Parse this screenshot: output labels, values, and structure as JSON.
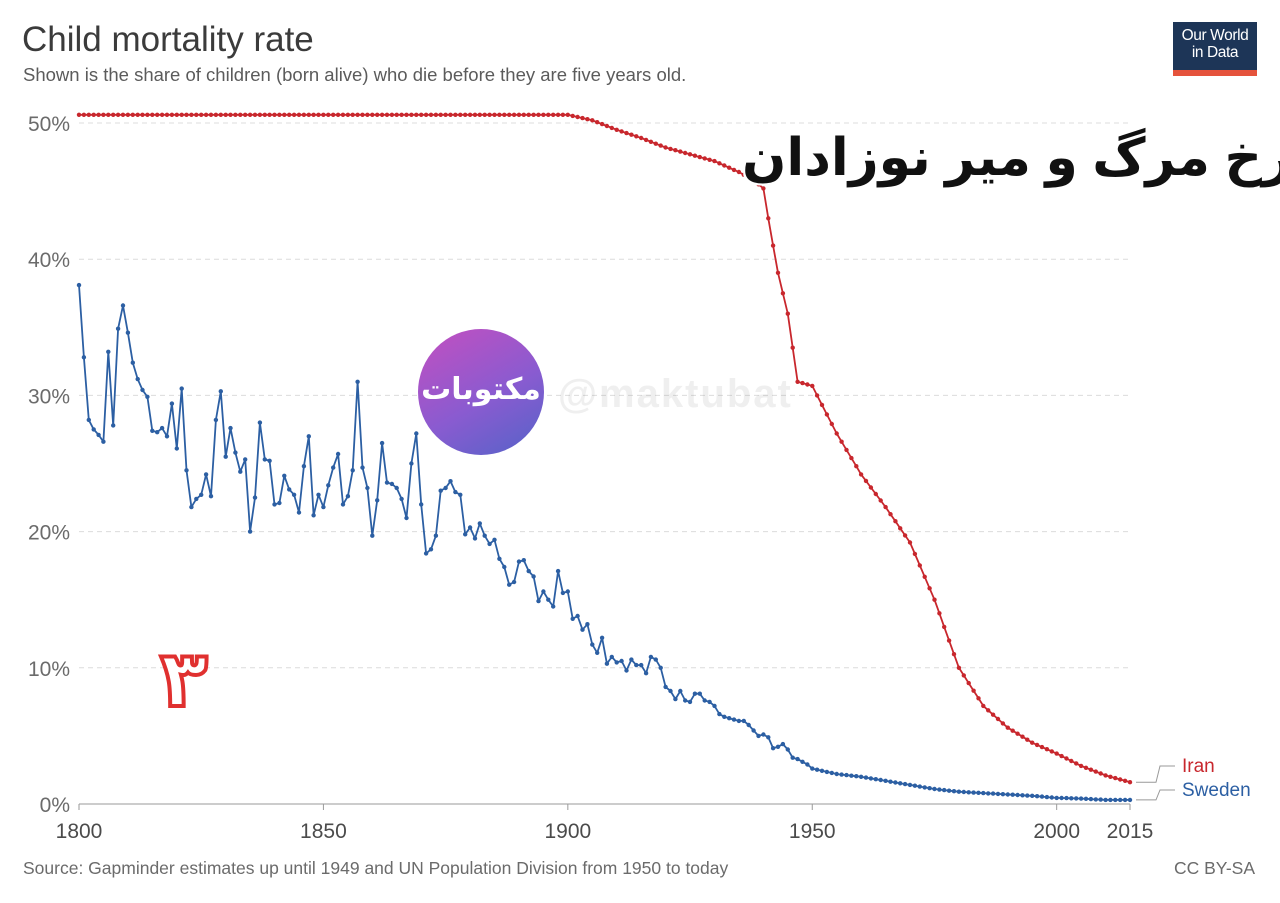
{
  "title": "Child mortality rate",
  "subtitle": "Shown is the share of children (born alive) who die before they are five years old.",
  "source": "Source: Gapminder estimates up until 1949 and UN Population Division from 1950 to today",
  "license": "CC BY-SA",
  "logo": {
    "line1": "Our World",
    "line2": "in Data",
    "bg_color": "#1d3557",
    "bar_color": "#e5533c"
  },
  "overlay": {
    "persian_title": "نرخ مرگ و میر نوزادان",
    "watermark_label": "مکتوبات",
    "watermark_handle": "@maktubat",
    "page_number": "۳"
  },
  "chart_data": {
    "type": "line",
    "title": "Child mortality rate",
    "xlabel": "",
    "ylabel": "",
    "xlim": [
      1800,
      2015
    ],
    "ylim": [
      0,
      50
    ],
    "x_ticks": [
      1800,
      1850,
      1900,
      1950,
      2000,
      2015
    ],
    "y_ticks": [
      0,
      10,
      20,
      30,
      40,
      50
    ],
    "y_tick_labels": [
      "0%",
      "10%",
      "20%",
      "30%",
      "40%",
      "50%"
    ],
    "grid": true,
    "legend": "end-of-line labels, right",
    "series": [
      {
        "name": "Iran",
        "color": "#c8272d",
        "points": [
          [
            1800,
            50.6
          ],
          [
            1900,
            50.6
          ],
          [
            1905,
            50.2
          ],
          [
            1910,
            49.5
          ],
          [
            1915,
            48.9
          ],
          [
            1920,
            48.2
          ],
          [
            1925,
            47.7
          ],
          [
            1930,
            47.2
          ],
          [
            1935,
            46.4
          ],
          [
            1938,
            45.8
          ],
          [
            1940,
            45.2
          ],
          [
            1941,
            43.0
          ],
          [
            1943,
            39.0
          ],
          [
            1945,
            36.0
          ],
          [
            1947,
            31.0
          ],
          [
            1949,
            30.8
          ],
          [
            1950,
            30.7
          ],
          [
            1955,
            27.2
          ],
          [
            1960,
            24.2
          ],
          [
            1965,
            21.8
          ],
          [
            1970,
            19.2
          ],
          [
            1975,
            15.0
          ],
          [
            1980,
            10.0
          ],
          [
            1985,
            7.2
          ],
          [
            1990,
            5.6
          ],
          [
            1995,
            4.5
          ],
          [
            2000,
            3.7
          ],
          [
            2005,
            2.8
          ],
          [
            2010,
            2.1
          ],
          [
            2015,
            1.6
          ]
        ]
      },
      {
        "name": "Sweden",
        "color": "#2c5fa3",
        "points": [
          [
            1800,
            38.1
          ],
          [
            1801,
            32.8
          ],
          [
            1802,
            28.2
          ],
          [
            1803,
            27.5
          ],
          [
            1804,
            27.1
          ],
          [
            1805,
            26.6
          ],
          [
            1806,
            33.2
          ],
          [
            1807,
            27.8
          ],
          [
            1808,
            34.9
          ],
          [
            1809,
            36.6
          ],
          [
            1810,
            34.6
          ],
          [
            1811,
            32.4
          ],
          [
            1812,
            31.2
          ],
          [
            1813,
            30.4
          ],
          [
            1814,
            29.9
          ],
          [
            1815,
            27.4
          ],
          [
            1816,
            27.3
          ],
          [
            1817,
            27.6
          ],
          [
            1818,
            27.0
          ],
          [
            1819,
            29.4
          ],
          [
            1820,
            26.1
          ],
          [
            1821,
            30.5
          ],
          [
            1822,
            24.5
          ],
          [
            1823,
            21.8
          ],
          [
            1824,
            22.4
          ],
          [
            1825,
            22.7
          ],
          [
            1826,
            24.2
          ],
          [
            1827,
            22.6
          ],
          [
            1828,
            28.2
          ],
          [
            1829,
            30.3
          ],
          [
            1830,
            25.5
          ],
          [
            1831,
            27.6
          ],
          [
            1832,
            25.8
          ],
          [
            1833,
            24.4
          ],
          [
            1834,
            25.3
          ],
          [
            1835,
            20.0
          ],
          [
            1836,
            22.5
          ],
          [
            1837,
            28.0
          ],
          [
            1838,
            25.3
          ],
          [
            1839,
            25.2
          ],
          [
            1840,
            22.0
          ],
          [
            1841,
            22.1
          ],
          [
            1842,
            24.1
          ],
          [
            1843,
            23.1
          ],
          [
            1844,
            22.7
          ],
          [
            1845,
            21.4
          ],
          [
            1846,
            24.8
          ],
          [
            1847,
            27.0
          ],
          [
            1848,
            21.2
          ],
          [
            1849,
            22.7
          ],
          [
            1850,
            21.8
          ],
          [
            1851,
            23.4
          ],
          [
            1852,
            24.7
          ],
          [
            1853,
            25.7
          ],
          [
            1854,
            22.0
          ],
          [
            1855,
            22.6
          ],
          [
            1856,
            24.5
          ],
          [
            1857,
            31.0
          ],
          [
            1858,
            24.7
          ],
          [
            1859,
            23.2
          ],
          [
            1860,
            19.7
          ],
          [
            1861,
            22.3
          ],
          [
            1862,
            26.5
          ],
          [
            1863,
            23.6
          ],
          [
            1864,
            23.5
          ],
          [
            1865,
            23.2
          ],
          [
            1866,
            22.4
          ],
          [
            1867,
            21.0
          ],
          [
            1868,
            25.0
          ],
          [
            1869,
            27.2
          ],
          [
            1870,
            22.0
          ],
          [
            1871,
            18.4
          ],
          [
            1872,
            18.7
          ],
          [
            1873,
            19.7
          ],
          [
            1874,
            23.0
          ],
          [
            1875,
            23.2
          ],
          [
            1876,
            23.7
          ],
          [
            1877,
            22.9
          ],
          [
            1878,
            22.7
          ],
          [
            1879,
            19.8
          ],
          [
            1880,
            20.3
          ],
          [
            1881,
            19.5
          ],
          [
            1882,
            20.6
          ],
          [
            1883,
            19.7
          ],
          [
            1884,
            19.1
          ],
          [
            1885,
            19.4
          ],
          [
            1886,
            18.0
          ],
          [
            1887,
            17.4
          ],
          [
            1888,
            16.1
          ],
          [
            1889,
            16.3
          ],
          [
            1890,
            17.8
          ],
          [
            1891,
            17.9
          ],
          [
            1892,
            17.1
          ],
          [
            1893,
            16.7
          ],
          [
            1894,
            14.9
          ],
          [
            1895,
            15.6
          ],
          [
            1896,
            15.0
          ],
          [
            1897,
            14.5
          ],
          [
            1898,
            17.1
          ],
          [
            1899,
            15.5
          ],
          [
            1900,
            15.6
          ],
          [
            1901,
            13.6
          ],
          [
            1902,
            13.8
          ],
          [
            1903,
            12.8
          ],
          [
            1904,
            13.2
          ],
          [
            1905,
            11.7
          ],
          [
            1906,
            11.1
          ],
          [
            1907,
            12.2
          ],
          [
            1908,
            10.3
          ],
          [
            1909,
            10.8
          ],
          [
            1910,
            10.4
          ],
          [
            1911,
            10.5
          ],
          [
            1912,
            9.8
          ],
          [
            1913,
            10.6
          ],
          [
            1914,
            10.2
          ],
          [
            1915,
            10.2
          ],
          [
            1916,
            9.6
          ],
          [
            1917,
            10.8
          ],
          [
            1918,
            10.6
          ],
          [
            1919,
            10.0
          ],
          [
            1920,
            8.6
          ],
          [
            1921,
            8.3
          ],
          [
            1922,
            7.7
          ],
          [
            1923,
            8.3
          ],
          [
            1924,
            7.6
          ],
          [
            1925,
            7.5
          ],
          [
            1926,
            8.1
          ],
          [
            1927,
            8.1
          ],
          [
            1928,
            7.6
          ],
          [
            1929,
            7.5
          ],
          [
            1930,
            7.2
          ],
          [
            1931,
            6.6
          ],
          [
            1932,
            6.4
          ],
          [
            1933,
            6.3
          ],
          [
            1934,
            6.2
          ],
          [
            1935,
            6.1
          ],
          [
            1936,
            6.1
          ],
          [
            1937,
            5.8
          ],
          [
            1938,
            5.4
          ],
          [
            1939,
            5.0
          ],
          [
            1940,
            5.1
          ],
          [
            1941,
            4.9
          ],
          [
            1942,
            4.1
          ],
          [
            1943,
            4.2
          ],
          [
            1944,
            4.4
          ],
          [
            1945,
            4.0
          ],
          [
            1946,
            3.4
          ],
          [
            1947,
            3.3
          ],
          [
            1948,
            3.1
          ],
          [
            1949,
            2.9
          ],
          [
            1950,
            2.6
          ],
          [
            1955,
            2.2
          ],
          [
            1960,
            2.0
          ],
          [
            1965,
            1.7
          ],
          [
            1970,
            1.4
          ],
          [
            1975,
            1.1
          ],
          [
            1980,
            0.9
          ],
          [
            1985,
            0.8
          ],
          [
            1990,
            0.7
          ],
          [
            1995,
            0.6
          ],
          [
            2000,
            0.45
          ],
          [
            2005,
            0.4
          ],
          [
            2010,
            0.3
          ],
          [
            2015,
            0.3
          ]
        ]
      }
    ]
  }
}
